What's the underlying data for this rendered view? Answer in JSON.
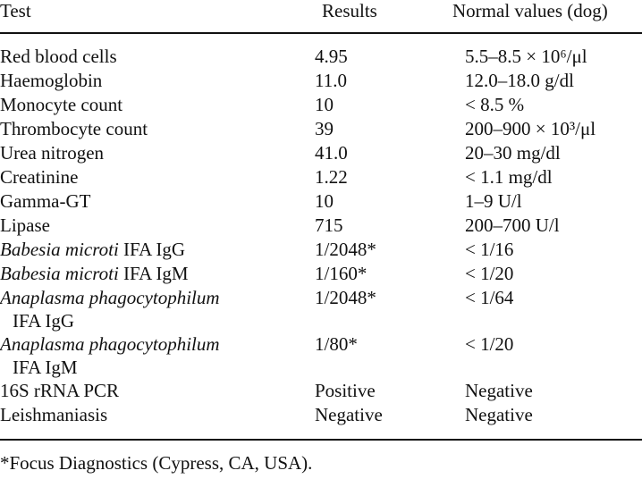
{
  "table": {
    "headers": {
      "test": "Test",
      "results": "Results",
      "normal": "Normal values (dog)"
    },
    "rows": [
      {
        "test": "Red blood cells",
        "result": "4.95",
        "normal": "5.5–8.5 × 10⁶/μl"
      },
      {
        "test": "Haemoglobin",
        "result": "11.0",
        "normal": "12.0–18.0 g/dl"
      },
      {
        "test": "Monocyte count",
        "result": "10",
        "normal": "< 8.5 %"
      },
      {
        "test": "Thrombocyte count",
        "result": "39",
        "normal": "200–900 × 10³/μl"
      },
      {
        "test": "Urea nitrogen",
        "result": "41.0",
        "normal": "20–30 mg/dl"
      },
      {
        "test": "Creatinine",
        "result": "1.22",
        "normal": "< 1.1 mg/dl"
      },
      {
        "test": "Gamma-GT",
        "result": "10",
        "normal": "1–9 U/l"
      },
      {
        "test": "Lipase",
        "result": "715",
        "normal": "200–700 U/l"
      },
      {
        "test_italic": "Babesia microti",
        "test_rest": " IFA IgG",
        "result": "1/2048*",
        "normal": "< 1/16"
      },
      {
        "test_italic": "Babesia microti",
        "test_rest": " IFA IgM",
        "result": "1/160*",
        "normal": "< 1/20"
      },
      {
        "test_italic": "Anaplasma phagocytophilum",
        "test_rest": "IFA IgG",
        "result": "1/2048*",
        "normal": "< 1/64"
      },
      {
        "test_italic": "Anaplasma phagocytophilum",
        "test_rest": "IFA IgM",
        "result": "1/80*",
        "normal": "< 1/20"
      },
      {
        "test": "16S rRNA PCR",
        "result": "Positive",
        "normal": "Negative"
      },
      {
        "test": "Leishmaniasis",
        "result": "Negative",
        "normal": "Negative"
      }
    ]
  },
  "footnote": "*Focus Diagnostics (Cypress, CA, USA)."
}
